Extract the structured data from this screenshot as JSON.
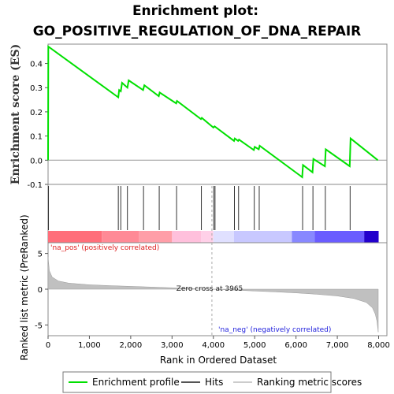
{
  "chart_data": {
    "type": "line",
    "title_line1": "Enrichment plot:",
    "title_line2": "GO_POSITIVE_REGULATION_OF_DNA_REPAIR",
    "es_panel": {
      "ylabel": "Enrichment score (ES)",
      "ylim": [
        -0.1,
        0.48
      ],
      "yticks": [
        -0.1,
        0.0,
        0.1,
        0.2,
        0.3,
        0.4
      ],
      "ytick_labels": [
        "-0.1",
        "0.0",
        "0.1",
        "0.2",
        "0.3",
        "0.4"
      ],
      "line_color": "#00e000",
      "points": [
        [
          0,
          0.0
        ],
        [
          5,
          0.47
        ],
        [
          1700,
          0.26
        ],
        [
          1720,
          0.29
        ],
        [
          1760,
          0.285
        ],
        [
          1790,
          0.32
        ],
        [
          1920,
          0.3
        ],
        [
          1950,
          0.33
        ],
        [
          2300,
          0.29
        ],
        [
          2330,
          0.31
        ],
        [
          2680,
          0.265
        ],
        [
          2700,
          0.28
        ],
        [
          3100,
          0.235
        ],
        [
          3120,
          0.245
        ],
        [
          3700,
          0.17
        ],
        [
          3720,
          0.175
        ],
        [
          4000,
          0.135
        ],
        [
          4030,
          0.14
        ],
        [
          4500,
          0.08
        ],
        [
          4520,
          0.09
        ],
        [
          4600,
          0.08
        ],
        [
          4620,
          0.085
        ],
        [
          4980,
          0.042
        ],
        [
          5000,
          0.055
        ],
        [
          5100,
          0.045
        ],
        [
          5120,
          0.06
        ],
        [
          6150,
          -0.07
        ],
        [
          6170,
          -0.02
        ],
        [
          6400,
          -0.05
        ],
        [
          6420,
          0.005
        ],
        [
          6700,
          -0.025
        ],
        [
          6720,
          0.045
        ],
        [
          7300,
          -0.025
        ],
        [
          7320,
          0.09
        ],
        [
          7980,
          0.0
        ]
      ]
    },
    "hits": [
      10,
      1700,
      1760,
      1920,
      2310,
      2690,
      3110,
      3710,
      4010,
      4040,
      4510,
      4610,
      4990,
      5110,
      6160,
      6410,
      6710,
      7310
    ],
    "heatmap": {
      "segments": [
        {
          "start": 0,
          "end": 1300,
          "color": "#ff6e7a"
        },
        {
          "start": 1300,
          "end": 2200,
          "color": "#ff8a96"
        },
        {
          "start": 2200,
          "end": 3000,
          "color": "#ff9ea8"
        },
        {
          "start": 3000,
          "end": 3700,
          "color": "#ffc0dc"
        },
        {
          "start": 3700,
          "end": 4000,
          "color": "#ffd0e8"
        },
        {
          "start": 4000,
          "end": 4500,
          "color": "#e0e0ff"
        },
        {
          "start": 4500,
          "end": 5900,
          "color": "#c8c8ff"
        },
        {
          "start": 5900,
          "end": 6450,
          "color": "#8888ff"
        },
        {
          "start": 6450,
          "end": 7650,
          "color": "#6a5cff"
        },
        {
          "start": 7650,
          "end": 8000,
          "color": "#2200cc"
        }
      ]
    },
    "ranked_panel": {
      "ylabel": "Ranked list metric (PreRanked)",
      "xlabel": "Rank in Ordered Dataset",
      "ylim": [
        -6.5,
        6.5
      ],
      "yticks": [
        -5,
        0,
        5
      ],
      "ytick_labels": [
        "-5",
        "0",
        "5"
      ],
      "xlim": [
        0,
        8200
      ],
      "xticks": [
        0,
        1000,
        2000,
        3000,
        4000,
        5000,
        6000,
        7000,
        8000
      ],
      "xtick_labels": [
        "0",
        "1,000",
        "2,000",
        "3,000",
        "4,000",
        "5,000",
        "6,000",
        "7,000",
        "8,000"
      ],
      "zero_cross": 3965,
      "zero_cross_label": "Zero cross at 3965",
      "pos_label": "'na_pos' (positively correlated)",
      "neg_label": "'na_neg' (negatively correlated)",
      "profile": [
        [
          0,
          4.5
        ],
        [
          30,
          2.6
        ],
        [
          100,
          1.7
        ],
        [
          250,
          1.15
        ],
        [
          500,
          0.85
        ],
        [
          1000,
          0.62
        ],
        [
          1500,
          0.5
        ],
        [
          2000,
          0.4
        ],
        [
          2500,
          0.3
        ],
        [
          3000,
          0.2
        ],
        [
          3500,
          0.08
        ],
        [
          3965,
          0.0
        ],
        [
          4500,
          -0.12
        ],
        [
          5000,
          -0.25
        ],
        [
          5500,
          -0.38
        ],
        [
          6000,
          -0.52
        ],
        [
          6500,
          -0.7
        ],
        [
          7000,
          -0.95
        ],
        [
          7400,
          -1.3
        ],
        [
          7700,
          -1.85
        ],
        [
          7850,
          -2.6
        ],
        [
          7920,
          -3.5
        ],
        [
          7960,
          -4.5
        ],
        [
          7990,
          -6.0
        ]
      ]
    },
    "legend": {
      "items": [
        {
          "label": "Enrichment profile",
          "color": "#00e000"
        },
        {
          "label": "Hits",
          "color": "#555555"
        },
        {
          "label": "Ranking metric scores",
          "color": "#cccccc"
        }
      ]
    }
  }
}
